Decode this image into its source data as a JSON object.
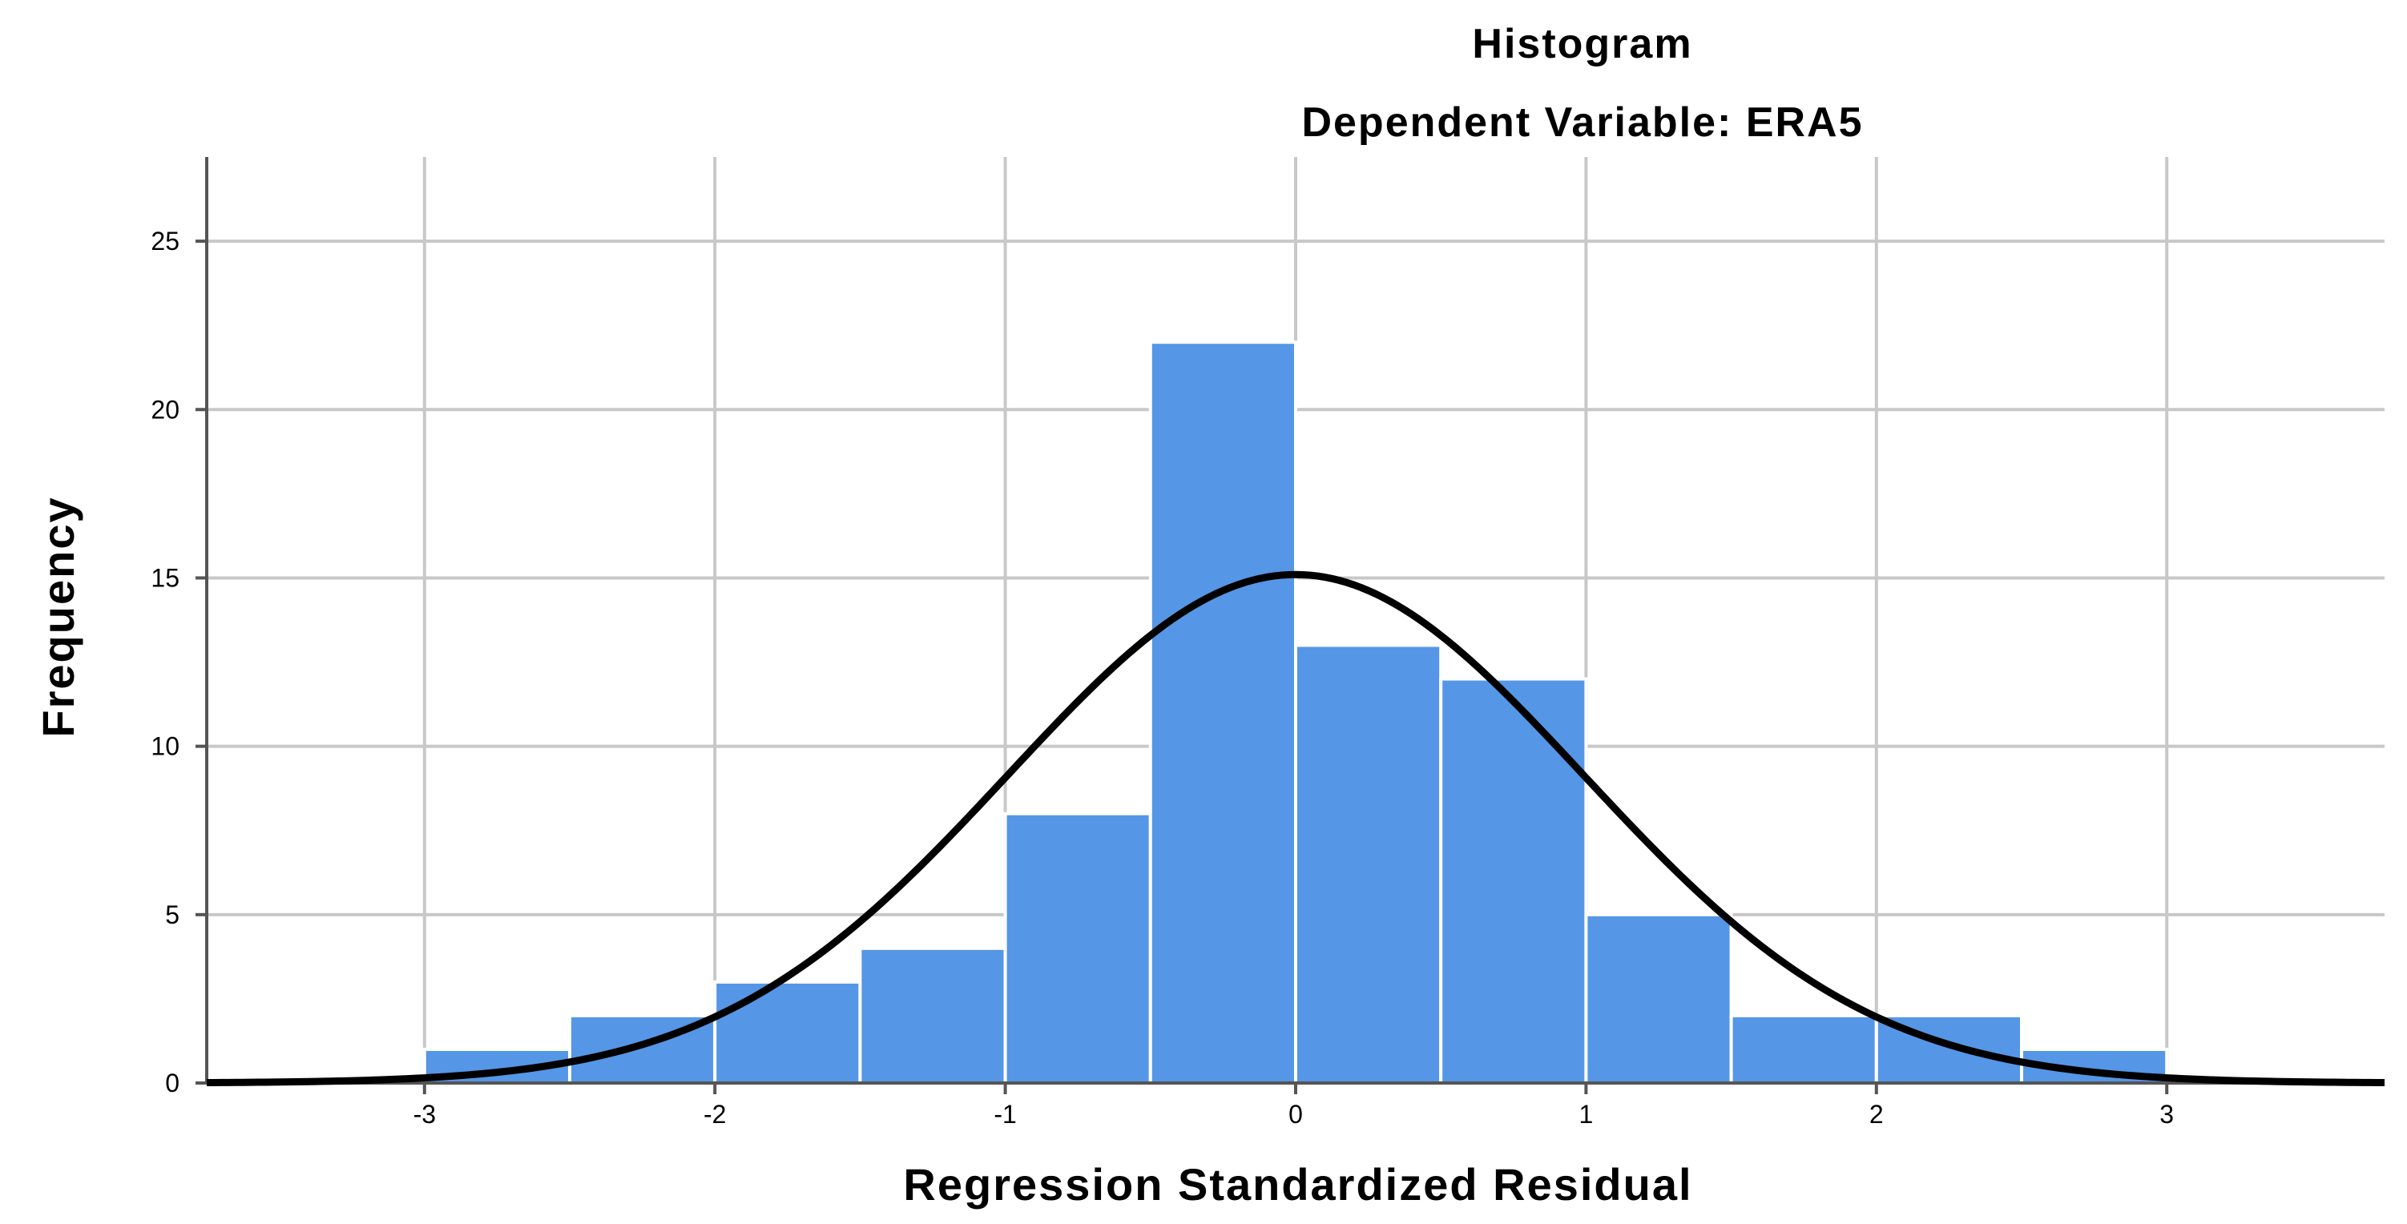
{
  "chart_data": {
    "type": "bar",
    "title": "Histogram",
    "subtitle": "Dependent Variable: ERA5",
    "xlabel": "Regression Standardized Residual",
    "ylabel": "Frequency",
    "xlim": [
      -3.75,
      3.75
    ],
    "ylim": [
      0,
      27.5
    ],
    "x_ticks": [
      -3,
      -2,
      -1,
      0,
      1,
      2,
      3
    ],
    "x_tick_labels": [
      "-3",
      "-2",
      "-1",
      "0",
      "1",
      "2",
      "3"
    ],
    "y_ticks": [
      0,
      5,
      10,
      15,
      20,
      25
    ],
    "y_tick_labels": [
      "0",
      "5",
      "10",
      "15",
      "20",
      "25"
    ],
    "grid": "on",
    "bin_width": 0.5,
    "bins": [
      {
        "start": -3.0,
        "end": -2.5,
        "count": 1
      },
      {
        "start": -2.5,
        "end": -2.0,
        "count": 2
      },
      {
        "start": -2.0,
        "end": -1.5,
        "count": 3
      },
      {
        "start": -1.5,
        "end": -1.0,
        "count": 4
      },
      {
        "start": -1.0,
        "end": -0.5,
        "count": 8
      },
      {
        "start": -0.5,
        "end": 0.0,
        "count": 22
      },
      {
        "start": 0.0,
        "end": 0.5,
        "count": 13
      },
      {
        "start": 0.5,
        "end": 1.0,
        "count": 12
      },
      {
        "start": 1.0,
        "end": 1.5,
        "count": 5
      },
      {
        "start": 1.5,
        "end": 2.0,
        "count": 2
      },
      {
        "start": 2.0,
        "end": 2.5,
        "count": 2
      },
      {
        "start": 2.5,
        "end": 3.0,
        "count": 1
      }
    ],
    "normal_curve": {
      "mean": 0,
      "std_dev": 0.99,
      "peak": 15.1
    },
    "colors": {
      "bar": "#5596e6",
      "curve": "#000000",
      "grid": "#c8c8c8"
    }
  }
}
